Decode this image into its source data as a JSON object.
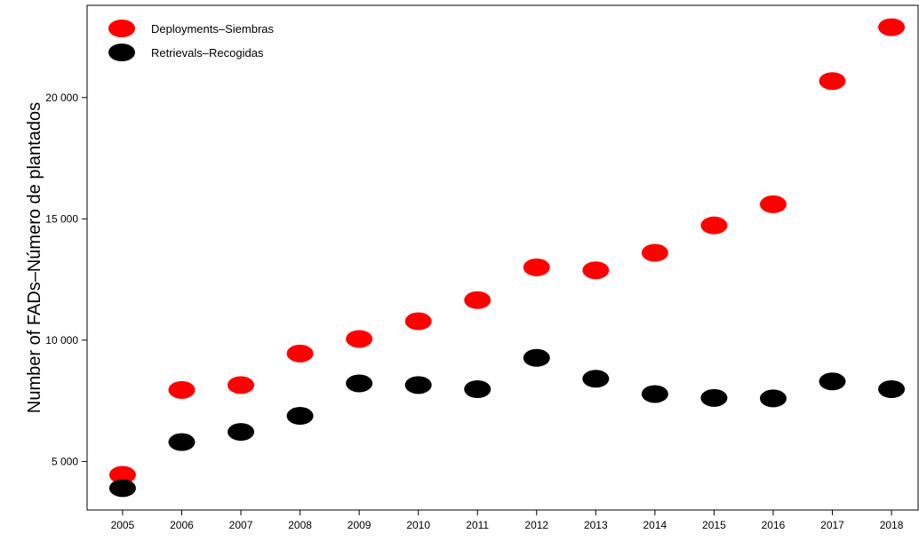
{
  "chart_data": {
    "type": "scatter",
    "title": "",
    "xlabel": "",
    "ylabel": "Number of FADs–Número de plantados",
    "x": [
      2005,
      2006,
      2007,
      2008,
      2009,
      2010,
      2011,
      2012,
      2013,
      2014,
      2015,
      2016,
      2017,
      2018
    ],
    "x_tick_labels": [
      "2005",
      "2006",
      "2007",
      "2008",
      "2009",
      "2010",
      "2011",
      "2012",
      "2013",
      "2014",
      "2015",
      "2016",
      "2017",
      "2018"
    ],
    "y_ticks": [
      5000,
      10000,
      15000,
      20000
    ],
    "y_tick_labels": [
      "5 000",
      "10 000",
      "15 000",
      "20 000"
    ],
    "ylim": [
      3000,
      23800
    ],
    "xlim": [
      2004.4,
      2018.45
    ],
    "grid": false,
    "legend_position": "top-left",
    "series": [
      {
        "name": "Deployments–Siembras",
        "color": "#ff0000",
        "values": [
          4450,
          7950,
          8150,
          9450,
          10050,
          10780,
          11650,
          13000,
          12880,
          13600,
          14730,
          15600,
          20680,
          22900
        ]
      },
      {
        "name": "Retrievals–Recogidas",
        "color": "#000000",
        "values": [
          3900,
          5800,
          6220,
          6880,
          8220,
          8150,
          7980,
          9270,
          8410,
          7780,
          7620,
          7600,
          8300,
          7980
        ]
      }
    ]
  }
}
